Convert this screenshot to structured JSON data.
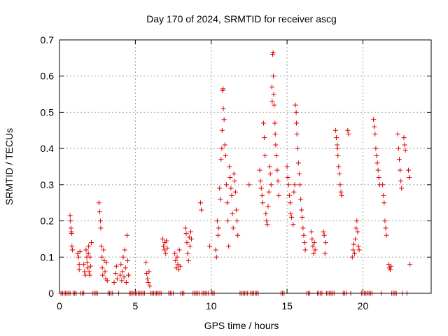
{
  "chart_data": {
    "type": "scatter",
    "title": "Day 170 of 2024, SRMTID for receiver ascg",
    "xlabel": "GPS time / hours",
    "ylabel": "SRMTID / TECUs",
    "xlim": [
      0,
      24.5
    ],
    "ylim": [
      0,
      0.7
    ],
    "xticks": [
      0,
      5,
      10,
      15,
      20
    ],
    "yticks": [
      0,
      0.1,
      0.2,
      0.3,
      0.4,
      0.5,
      0.6,
      0.7
    ],
    "xtick_labels": [
      "0",
      "5",
      "10",
      "15",
      "20"
    ],
    "ytick_labels": [
      "0",
      "0.1",
      "0.2",
      "0.3",
      "0.4",
      "0.5",
      "0.6",
      "0.7"
    ],
    "grid": true,
    "marker": "+",
    "color": "#e00000",
    "series": [
      {
        "name": "SRMTID",
        "points": [
          [
            0.7,
            0.215
          ],
          [
            0.72,
            0.2
          ],
          [
            0.75,
            0.18
          ],
          [
            0.78,
            0.17
          ],
          [
            0.8,
            0.165
          ],
          [
            0.82,
            0.13
          ],
          [
            0.85,
            0.12
          ],
          [
            1.2,
            0.11
          ],
          [
            1.25,
            0.1
          ],
          [
            1.3,
            0.08
          ],
          [
            1.3,
            0.065
          ],
          [
            1.35,
            0.115
          ],
          [
            1.6,
            0.08
          ],
          [
            1.65,
            0.06
          ],
          [
            1.7,
            0.05
          ],
          [
            1.75,
            0.12
          ],
          [
            1.8,
            0.1
          ],
          [
            1.82,
            0.085
          ],
          [
            1.85,
            0.07
          ],
          [
            1.9,
            0.11
          ],
          [
            1.92,
            0.13
          ],
          [
            1.95,
            0.06
          ],
          [
            2.0,
            0.05
          ],
          [
            2.02,
            0.1
          ],
          [
            2.05,
            0.075
          ],
          [
            2.1,
            0.14
          ],
          [
            2.6,
            0.25
          ],
          [
            2.65,
            0.225
          ],
          [
            2.7,
            0.2
          ],
          [
            2.72,
            0.18
          ],
          [
            2.75,
            0.13
          ],
          [
            2.8,
            0.1
          ],
          [
            2.82,
            0.07
          ],
          [
            2.85,
            0.05
          ],
          [
            2.9,
            0.12
          ],
          [
            2.95,
            0.09
          ],
          [
            3.0,
            0.06
          ],
          [
            3.05,
            0.04
          ],
          [
            3.1,
            0.085
          ],
          [
            3.15,
            0.035
          ],
          [
            3.6,
            0.03
          ],
          [
            3.7,
            0.055
          ],
          [
            3.75,
            0.075
          ],
          [
            3.8,
            0.04
          ],
          [
            4.0,
            0.05
          ],
          [
            4.05,
            0.08
          ],
          [
            4.1,
            0.035
          ],
          [
            4.15,
            0.06
          ],
          [
            4.2,
            0.1
          ],
          [
            4.25,
            0.045
          ],
          [
            4.3,
            0.12
          ],
          [
            4.35,
            0.07
          ],
          [
            4.4,
            0.03
          ],
          [
            4.45,
            0.16
          ],
          [
            4.5,
            0.09
          ],
          [
            4.55,
            0.05
          ],
          [
            5.7,
            0.085
          ],
          [
            5.75,
            0.055
          ],
          [
            5.8,
            0.04
          ],
          [
            5.85,
            0.03
          ],
          [
            5.9,
            0.06
          ],
          [
            5.95,
            0.02
          ],
          [
            6.8,
            0.15
          ],
          [
            6.85,
            0.13
          ],
          [
            6.9,
            0.12
          ],
          [
            6.95,
            0.14
          ],
          [
            7.0,
            0.11
          ],
          [
            7.05,
            0.145
          ],
          [
            7.1,
            0.125
          ],
          [
            7.6,
            0.11
          ],
          [
            7.65,
            0.09
          ],
          [
            7.7,
            0.07
          ],
          [
            7.75,
            0.1
          ],
          [
            7.8,
            0.08
          ],
          [
            7.85,
            0.065
          ],
          [
            7.9,
            0.12
          ],
          [
            7.95,
            0.075
          ],
          [
            8.3,
            0.18
          ],
          [
            8.35,
            0.165
          ],
          [
            8.4,
            0.14
          ],
          [
            8.45,
            0.11
          ],
          [
            8.5,
            0.09
          ],
          [
            8.55,
            0.155
          ],
          [
            8.6,
            0.13
          ],
          [
            8.65,
            0.17
          ],
          [
            8.7,
            0.15
          ],
          [
            9.3,
            0.25
          ],
          [
            9.35,
            0.23
          ],
          [
            9.9,
            0.13
          ],
          [
            10.3,
            0.12
          ],
          [
            10.35,
            0.1
          ],
          [
            10.4,
            0.2
          ],
          [
            10.45,
            0.16
          ],
          [
            10.5,
            0.18
          ],
          [
            10.55,
            0.29
          ],
          [
            10.6,
            0.26
          ],
          [
            10.65,
            0.37
          ],
          [
            10.7,
            0.4
          ],
          [
            10.72,
            0.45
          ],
          [
            10.75,
            0.56
          ],
          [
            10.78,
            0.565
          ],
          [
            10.8,
            0.51
          ],
          [
            10.85,
            0.48
          ],
          [
            10.9,
            0.41
          ],
          [
            10.95,
            0.38
          ],
          [
            11.0,
            0.3
          ],
          [
            11.05,
            0.25
          ],
          [
            11.1,
            0.2
          ],
          [
            11.15,
            0.13
          ],
          [
            11.2,
            0.35
          ],
          [
            11.25,
            0.32
          ],
          [
            11.3,
            0.29
          ],
          [
            11.35,
            0.27
          ],
          [
            11.4,
            0.22
          ],
          [
            11.45,
            0.18
          ],
          [
            11.5,
            0.33
          ],
          [
            11.55,
            0.31
          ],
          [
            11.6,
            0.28
          ],
          [
            11.65,
            0.23
          ],
          [
            11.7,
            0.2
          ],
          [
            11.75,
            0.16
          ],
          [
            12.5,
            0.3
          ],
          [
            13.2,
            0.34
          ],
          [
            13.25,
            0.31
          ],
          [
            13.3,
            0.29
          ],
          [
            13.35,
            0.27
          ],
          [
            13.4,
            0.25
          ],
          [
            13.45,
            0.47
          ],
          [
            13.5,
            0.43
          ],
          [
            13.55,
            0.38
          ],
          [
            13.6,
            0.22
          ],
          [
            13.65,
            0.2
          ],
          [
            13.7,
            0.19
          ],
          [
            13.75,
            0.24
          ],
          [
            13.8,
            0.28
          ],
          [
            13.85,
            0.35
          ],
          [
            13.9,
            0.33
          ],
          [
            13.95,
            0.3
          ],
          [
            14.0,
            0.57
          ],
          [
            14.02,
            0.53
          ],
          [
            14.05,
            0.66
          ],
          [
            14.08,
            0.665
          ],
          [
            14.1,
            0.6
          ],
          [
            14.12,
            0.55
          ],
          [
            14.15,
            0.52
          ],
          [
            14.2,
            0.47
          ],
          [
            14.22,
            0.44
          ],
          [
            14.25,
            0.41
          ],
          [
            14.3,
            0.38
          ],
          [
            14.35,
            0.34
          ],
          [
            14.4,
            0.31
          ],
          [
            14.45,
            0.27
          ],
          [
            15.0,
            0.35
          ],
          [
            15.05,
            0.32
          ],
          [
            15.1,
            0.3
          ],
          [
            15.15,
            0.27
          ],
          [
            15.2,
            0.25
          ],
          [
            15.25,
            0.22
          ],
          [
            15.3,
            0.21
          ],
          [
            15.4,
            0.19
          ],
          [
            15.45,
            0.28
          ],
          [
            15.5,
            0.3
          ],
          [
            15.55,
            0.52
          ],
          [
            15.6,
            0.5
          ],
          [
            15.62,
            0.47
          ],
          [
            15.65,
            0.44
          ],
          [
            15.7,
            0.4
          ],
          [
            15.75,
            0.36
          ],
          [
            15.8,
            0.33
          ],
          [
            15.85,
            0.3
          ],
          [
            15.9,
            0.26
          ],
          [
            15.95,
            0.23
          ],
          [
            16.0,
            0.21
          ],
          [
            16.05,
            0.18
          ],
          [
            16.1,
            0.16
          ],
          [
            16.15,
            0.14
          ],
          [
            16.2,
            0.12
          ],
          [
            16.6,
            0.17
          ],
          [
            16.65,
            0.15
          ],
          [
            16.7,
            0.13
          ],
          [
            16.75,
            0.11
          ],
          [
            16.8,
            0.14
          ],
          [
            16.85,
            0.12
          ],
          [
            17.4,
            0.17
          ],
          [
            17.45,
            0.16
          ],
          [
            17.5,
            0.11
          ],
          [
            17.55,
            0.14
          ],
          [
            18.2,
            0.45
          ],
          [
            18.25,
            0.43
          ],
          [
            18.3,
            0.41
          ],
          [
            18.32,
            0.4
          ],
          [
            18.35,
            0.38
          ],
          [
            18.4,
            0.35
          ],
          [
            18.45,
            0.33
          ],
          [
            18.5,
            0.3
          ],
          [
            18.55,
            0.28
          ],
          [
            18.6,
            0.27
          ],
          [
            19.0,
            0.45
          ],
          [
            19.05,
            0.44
          ],
          [
            19.3,
            0.1
          ],
          [
            19.35,
            0.12
          ],
          [
            19.4,
            0.135
          ],
          [
            19.45,
            0.11
          ],
          [
            19.5,
            0.15
          ],
          [
            19.55,
            0.18
          ],
          [
            19.6,
            0.2
          ],
          [
            19.65,
            0.17
          ],
          [
            19.7,
            0.13
          ],
          [
            19.75,
            0.12
          ],
          [
            20.7,
            0.48
          ],
          [
            20.75,
            0.46
          ],
          [
            20.8,
            0.44
          ],
          [
            20.85,
            0.4
          ],
          [
            20.9,
            0.38
          ],
          [
            20.95,
            0.36
          ],
          [
            21.0,
            0.34
          ],
          [
            21.05,
            0.32
          ],
          [
            21.1,
            0.3
          ],
          [
            21.3,
            0.3
          ],
          [
            21.35,
            0.27
          ],
          [
            21.4,
            0.25
          ],
          [
            21.45,
            0.2
          ],
          [
            21.5,
            0.18
          ],
          [
            21.55,
            0.16
          ],
          [
            21.7,
            0.08
          ],
          [
            21.75,
            0.07
          ],
          [
            21.8,
            0.065
          ],
          [
            21.85,
            0.075
          ],
          [
            22.3,
            0.44
          ],
          [
            22.35,
            0.4
          ],
          [
            22.4,
            0.37
          ],
          [
            22.45,
            0.34
          ],
          [
            22.5,
            0.31
          ],
          [
            22.55,
            0.29
          ],
          [
            22.7,
            0.43
          ],
          [
            22.75,
            0.41
          ],
          [
            22.8,
            0.395
          ],
          [
            23.0,
            0.34
          ],
          [
            23.05,
            0.32
          ],
          [
            23.1,
            0.08
          ]
        ]
      }
    ],
    "zero_points_x": [
      0.1,
      0.2,
      0.3,
      0.4,
      0.5,
      0.6,
      0.7,
      0.9,
      1.0,
      1.1,
      1.4,
      1.5,
      1.6,
      2.2,
      2.3,
      2.4,
      2.5,
      3.2,
      3.3,
      3.4,
      3.5,
      3.9,
      4.6,
      4.7,
      4.8,
      4.9,
      5.0,
      5.1,
      5.2,
      5.3,
      5.4,
      5.5,
      5.6,
      6.0,
      6.1,
      6.2,
      6.3,
      6.4,
      6.5,
      6.6,
      6.7,
      7.2,
      7.3,
      7.4,
      7.5,
      8.0,
      8.1,
      8.2,
      8.8,
      8.9,
      9.0,
      9.1,
      9.2,
      9.4,
      9.5,
      9.6,
      9.7,
      9.8,
      10.0,
      10.1,
      10.2,
      11.9,
      12.0,
      12.1,
      12.2,
      12.3,
      12.4,
      12.6,
      12.7,
      12.8,
      12.9,
      13.0,
      13.1,
      14.6,
      14.7,
      14.8,
      16.3,
      16.4,
      16.5,
      17.0,
      17.1,
      17.2,
      17.3,
      17.6,
      17.7,
      17.8,
      17.9,
      18.0,
      18.1,
      18.7,
      18.8,
      18.9,
      19.2,
      19.9,
      20.0,
      20.1,
      20.2,
      20.3,
      20.4,
      20.5,
      20.6,
      21.2,
      21.9,
      22.0,
      22.1,
      22.2,
      22.6,
      22.9
    ]
  }
}
